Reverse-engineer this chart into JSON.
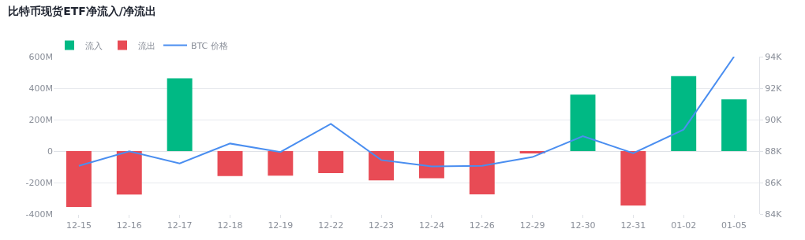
{
  "chart_data": {
    "type": "bar",
    "title": "比特币现货ETF净流入/净流出",
    "categories": [
      "12-15",
      "12-16",
      "12-17",
      "12-18",
      "12-19",
      "12-22",
      "12-23",
      "12-24",
      "12-26",
      "12-29",
      "12-30",
      "12-31",
      "01-02",
      "01-05"
    ],
    "series": [
      {
        "name": "流入",
        "color": "#00b984",
        "values": [
          null,
          null,
          462,
          null,
          null,
          null,
          null,
          null,
          null,
          null,
          359,
          null,
          476,
          329
        ]
      },
      {
        "name": "流出",
        "color": "#e84b55",
        "values": [
          -355,
          -276,
          null,
          -159,
          -156,
          -140,
          -186,
          -173,
          -275,
          -15,
          null,
          -346,
          null,
          null
        ]
      },
      {
        "name": "BTC 价格",
        "type": "line",
        "axis": "y2",
        "color": "#4a8ef0",
        "values": [
          87.06,
          87.98,
          87.22,
          88.48,
          87.94,
          89.73,
          87.43,
          87.02,
          87.06,
          87.62,
          88.95,
          87.87,
          89.37,
          94.0
        ]
      }
    ],
    "ylim": [
      -400,
      600
    ],
    "yticks": [
      {
        "value": -400,
        "label": "-400M"
      },
      {
        "value": -200,
        "label": "-200M"
      },
      0,
      {
        "value": 200,
        "label": "200M"
      },
      {
        "value": 400,
        "label": "400M"
      },
      {
        "value": 600,
        "label": "600M"
      }
    ],
    "y2lim": [
      84,
      94
    ],
    "y2ticks": [
      {
        "value": 84,
        "label": "84K"
      },
      {
        "value": 86,
        "label": "86K"
      },
      {
        "value": 88,
        "label": "88K"
      },
      {
        "value": 90,
        "label": "90K"
      },
      {
        "value": 92,
        "label": "92K"
      },
      {
        "value": 94,
        "label": "94K"
      }
    ],
    "grid": "y",
    "legend": "top left",
    "marker": "none",
    "line_style": "solid"
  }
}
